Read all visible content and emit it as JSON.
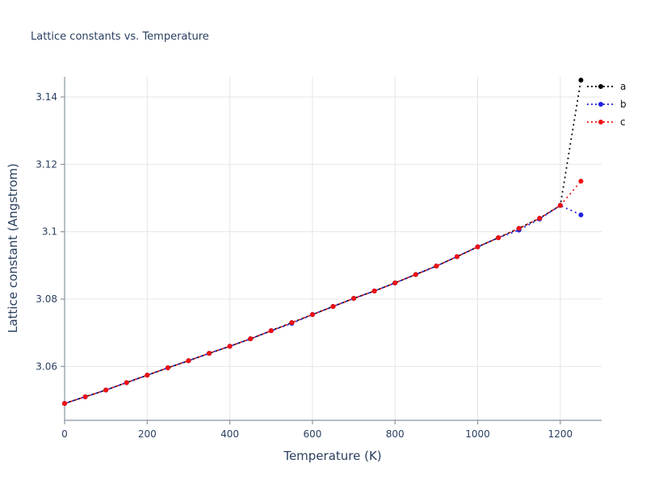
{
  "chart": {
    "title": "Lattice constants vs. Temperature",
    "xlabel": "Temperature (K)",
    "ylabel": "Lattice constant (Angstrom)"
  },
  "chart_data": {
    "type": "line",
    "title": "Lattice constants vs. Temperature",
    "xlabel": "Temperature (K)",
    "ylabel": "Lattice constant (Angstrom)",
    "line_style": "dotted",
    "marker": "circle",
    "grid": true,
    "legend_position": "top-right-outside",
    "xlim": [
      0,
      1300
    ],
    "ylim": [
      3.044,
      3.146
    ],
    "xticks": [
      {
        "value": 0,
        "label": "0"
      },
      {
        "value": 200,
        "label": "200"
      },
      {
        "value": 400,
        "label": "400"
      },
      {
        "value": 600,
        "label": "600"
      },
      {
        "value": 800,
        "label": "800"
      },
      {
        "value": 1000,
        "label": "1000"
      },
      {
        "value": 1200,
        "label": "1200"
      }
    ],
    "yticks": [
      {
        "value": 3.06,
        "label": "3.06"
      },
      {
        "value": 3.08,
        "label": "3.08"
      },
      {
        "value": 3.1,
        "label": "3.1"
      },
      {
        "value": 3.12,
        "label": "3.12"
      },
      {
        "value": 3.14,
        "label": "3.14"
      }
    ],
    "x": [
      0,
      50,
      100,
      150,
      200,
      250,
      300,
      350,
      400,
      450,
      500,
      550,
      600,
      650,
      700,
      750,
      800,
      850,
      900,
      950,
      1000,
      1050,
      1100,
      1150,
      1200,
      1250
    ],
    "series": [
      {
        "name": "a",
        "color": "#000000",
        "values": [
          3.049,
          3.051,
          3.053,
          3.0552,
          3.0574,
          3.0596,
          3.0617,
          3.0639,
          3.066,
          3.0682,
          3.0706,
          3.073,
          3.0754,
          3.0778,
          3.0802,
          3.0824,
          3.0848,
          3.0873,
          3.0898,
          3.0926,
          3.0955,
          3.0982,
          3.101,
          3.104,
          3.1078,
          3.145
        ]
      },
      {
        "name": "b",
        "color": "#2020e0",
        "values": [
          3.049,
          3.051,
          3.053,
          3.0552,
          3.0574,
          3.0596,
          3.0617,
          3.0639,
          3.066,
          3.0682,
          3.0706,
          3.0728,
          3.0754,
          3.0778,
          3.0802,
          3.0824,
          3.0848,
          3.0873,
          3.0898,
          3.0926,
          3.0955,
          3.0982,
          3.1005,
          3.1038,
          3.1078,
          3.105
        ]
      },
      {
        "name": "c",
        "color": "#ee1111",
        "values": [
          3.049,
          3.051,
          3.053,
          3.0552,
          3.0574,
          3.0596,
          3.0617,
          3.0639,
          3.066,
          3.0682,
          3.0706,
          3.073,
          3.0754,
          3.0778,
          3.0802,
          3.0824,
          3.0848,
          3.0873,
          3.0898,
          3.0926,
          3.0955,
          3.0982,
          3.101,
          3.104,
          3.1078,
          3.115
        ]
      }
    ],
    "colors": {
      "grid": "#e6e6e6",
      "axis": "#8a959e",
      "text": "#2a3f5f",
      "background": "#ffffff"
    }
  }
}
